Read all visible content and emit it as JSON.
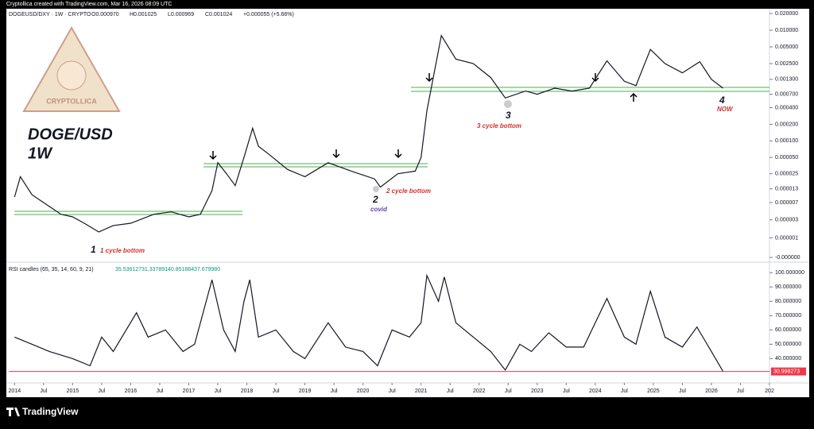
{
  "header": {
    "text": "Cryptollica created with TradingView.com, Mar 16, 2026 08:09 UTC"
  },
  "footer": {
    "logo": "TradingView"
  },
  "watermark": {
    "text": "CRYPTOLLICA"
  },
  "chart_data": [
    {
      "type": "line",
      "symbol": "DOGEUSD/DXY · 1W · CRYPTO",
      "ohlc": [
        "O0.000970",
        "H0.001025",
        "L0.000969",
        "C0.001024",
        "+0.000055 (+5.66%)"
      ],
      "title": "DOGE/USD",
      "subtitle": "1W",
      "annotations": [
        "1",
        "1 cycle bottom",
        "2",
        "2 cycle bottom",
        "covid",
        "3",
        "3 cycle bottom",
        "4",
        "NOW"
      ],
      "color": "#131722",
      "log_scale": true,
      "xlim": [
        2013.9,
        2027.0
      ],
      "ylim": [
        0,
        0.02
      ],
      "yticks": [
        {
          "value": 0.02,
          "label": "0.020000"
        },
        {
          "value": 0.01,
          "label": "0.010000"
        },
        {
          "value": 0.005,
          "label": "0.005000"
        },
        {
          "value": 0.0025,
          "label": "0.002500"
        },
        {
          "value": 0.0013,
          "label": "0.001300"
        },
        {
          "value": 0.0007,
          "label": "0.000700"
        },
        {
          "value": 0.0004,
          "label": "0.000400"
        },
        {
          "value": 0.0002,
          "label": "0.000200"
        },
        {
          "value": 0.0001,
          "label": "0.000100"
        },
        {
          "value": 5e-05,
          "label": "0.000050"
        },
        {
          "value": 2.5e-05,
          "label": "0.000025"
        },
        {
          "value": 1.3e-05,
          "label": "0.000013"
        },
        {
          "value": 7e-06,
          "label": "0.000007"
        },
        {
          "value": 3e-06,
          "label": "0.000003"
        },
        {
          "value": 1e-06,
          "label": "0.000001"
        },
        {
          "value": 0,
          "label": "-0.000000"
        }
      ],
      "x": [
        2014.0,
        2014.1,
        2014.3,
        2014.5,
        2014.8,
        2015.0,
        2015.2,
        2015.45,
        2015.7,
        2016.0,
        2016.4,
        2016.7,
        2017.0,
        2017.2,
        2017.4,
        2017.5,
        2017.65,
        2017.8,
        2017.95,
        2018.1,
        2018.2,
        2018.4,
        2018.7,
        2019.0,
        2019.4,
        2019.8,
        2020.2,
        2020.3,
        2020.6,
        2020.9,
        2021.0,
        2021.1,
        2021.35,
        2021.6,
        2021.9,
        2022.2,
        2022.45,
        2022.8,
        2023.0,
        2023.3,
        2023.6,
        2023.9,
        2024.2,
        2024.5,
        2024.7,
        2024.95,
        2025.2,
        2025.5,
        2025.8,
        2026.0,
        2026.2
      ],
      "values": [
        9e-06,
        2.2e-05,
        1e-05,
        7e-06,
        4e-06,
        3.5e-06,
        2.5e-06,
        1.5e-06,
        2.2e-06,
        2.5e-06,
        4e-06,
        4.5e-06,
        3.5e-06,
        4e-06,
        1.2e-05,
        4e-05,
        2.5e-05,
        1.5e-05,
        5e-05,
        0.00017,
        8e-05,
        5.5e-05,
        3e-05,
        2.2e-05,
        4e-05,
        2.8e-05,
        2e-05,
        1.4e-05,
        2.5e-05,
        2.8e-05,
        5e-05,
        0.00035,
        0.008,
        0.003,
        0.0025,
        0.0014,
        0.0006,
        0.0008,
        0.0007,
        0.0009,
        0.0008,
        0.0009,
        0.0028,
        0.0012,
        0.001,
        0.0045,
        0.0025,
        0.0017,
        0.0027,
        0.0013,
        0.0009
      ]
    },
    {
      "type": "line",
      "title": "RSI candles (65, 35, 14, 60, 9, 21)",
      "legend_values": [
        "35.536127",
        "31.337891",
        "40.851884",
        "37.679980"
      ],
      "color": "#131722",
      "last_value": 30.998273,
      "last_color": "#f23645",
      "xlim": [
        2013.9,
        2027.0
      ],
      "ylim": [
        28,
        104
      ],
      "yticks": [
        {
          "value": 100,
          "label": "100.000000"
        },
        {
          "value": 90,
          "label": "90.000000"
        },
        {
          "value": 80,
          "label": "80.000000"
        },
        {
          "value": 70,
          "label": "70.000000"
        },
        {
          "value": 60,
          "label": "60.000000"
        },
        {
          "value": 50,
          "label": "50.000000"
        },
        {
          "value": 40,
          "label": "40.000000"
        }
      ],
      "xticks": [
        2014,
        {
          "value": 2014.5,
          "label": "Jul"
        },
        2015,
        {
          "value": 2015.5,
          "label": "Jul"
        },
        2016,
        {
          "value": 2016.5,
          "label": "Jul"
        },
        2017,
        {
          "value": 2017.5,
          "label": "Jul"
        },
        2018,
        {
          "value": 2018.5,
          "label": "Jul"
        },
        2019,
        {
          "value": 2019.5,
          "label": "Jul"
        },
        2020,
        {
          "value": 2020.5,
          "label": "Jul"
        },
        2021,
        {
          "value": 2021.5,
          "label": "Jul"
        },
        2022,
        {
          "value": 2022.5,
          "label": "Jul"
        },
        2023,
        {
          "value": 2023.5,
          "label": "Jul"
        },
        2024,
        {
          "value": 2024.5,
          "label": "Jul"
        },
        2025,
        {
          "value": 2025.5,
          "label": "Jul"
        },
        2026,
        {
          "value": 2026.5,
          "label": "Jul"
        },
        {
          "value": 2027,
          "label": "202"
        }
      ],
      "x": [
        2014.0,
        2014.3,
        2014.6,
        2015.0,
        2015.3,
        2015.5,
        2015.7,
        2016.1,
        2016.3,
        2016.6,
        2016.9,
        2017.1,
        2017.4,
        2017.6,
        2017.8,
        2017.95,
        2018.05,
        2018.2,
        2018.5,
        2018.8,
        2019.0,
        2019.4,
        2019.7,
        2020.0,
        2020.25,
        2020.5,
        2020.8,
        2021.0,
        2021.1,
        2021.3,
        2021.4,
        2021.6,
        2021.9,
        2022.2,
        2022.45,
        2022.7,
        2022.9,
        2023.2,
        2023.5,
        2023.8,
        2024.2,
        2024.5,
        2024.7,
        2024.95,
        2025.2,
        2025.5,
        2025.75,
        2026.0,
        2026.2
      ],
      "values": [
        55,
        50,
        45,
        40,
        35,
        55,
        45,
        72,
        55,
        60,
        45,
        50,
        95,
        60,
        45,
        80,
        95,
        55,
        60,
        45,
        40,
        65,
        48,
        45,
        35,
        60,
        55,
        65,
        98,
        80,
        97,
        65,
        55,
        45,
        32,
        50,
        45,
        58,
        48,
        48,
        82,
        55,
        50,
        87,
        55,
        48,
        62,
        45,
        31
      ]
    }
  ]
}
